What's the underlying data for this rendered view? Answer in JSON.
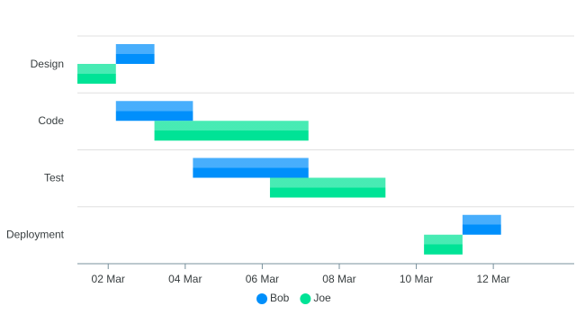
{
  "chart_data": {
    "type": "rangebar",
    "categories": [
      "Design",
      "Code",
      "Test",
      "Deployment"
    ],
    "series": [
      {
        "name": "Bob",
        "color": "#008ffb",
        "values": [
          [
            2.2,
            3.2
          ],
          [
            2.2,
            4.2
          ],
          [
            4.2,
            7.2
          ],
          [
            11.2,
            12.2
          ]
        ]
      },
      {
        "name": "Joe",
        "color": "#00e396",
        "values": [
          [
            1.2,
            2.2
          ],
          [
            3.2,
            7.2
          ],
          [
            6.2,
            9.2
          ],
          [
            10.2,
            11.2
          ]
        ]
      }
    ],
    "xlim": [
      1.2,
      14.1
    ],
    "xticks": [
      {
        "value": 2,
        "label": "02 Mar"
      },
      {
        "value": 4,
        "label": "04 Mar"
      },
      {
        "value": 6,
        "label": "06 Mar"
      },
      {
        "value": 8,
        "label": "08 Mar"
      },
      {
        "value": 10,
        "label": "10 Mar"
      },
      {
        "value": 12,
        "label": "12 Mar"
      }
    ],
    "grid": true,
    "legend": "bottom"
  }
}
